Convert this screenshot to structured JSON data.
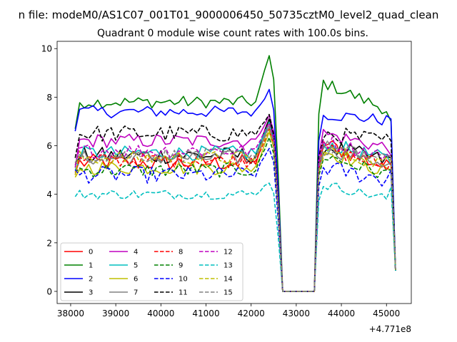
{
  "chart_data": {
    "type": "line",
    "suptitle": "n file: modeM0/AS1C07_001T01_9000006450_50735cztM0_level2_quad_clean",
    "title": "Quadrant 0 module wise count rates with 100.0s bins.",
    "xlabel": "",
    "ylabel": "",
    "x_offset_label": "+4.771e8",
    "xlim": [
      37700,
      45550
    ],
    "ylim": [
      -0.5,
      10.3
    ],
    "xticks": [
      38000,
      39000,
      40000,
      41000,
      42000,
      43000,
      44000,
      45000
    ],
    "yticks": [
      0,
      2,
      4,
      6,
      8,
      10
    ],
    "grid": false,
    "legend": {
      "placement": "lower-left",
      "columns": 4
    },
    "x_start": 38100,
    "x_step": 100,
    "n_points": 72,
    "gap_x": [
      42700,
      43400
    ],
    "series": [
      {
        "name": "0",
        "color": "#ff0000",
        "dash": "solid",
        "first": 4.9,
        "base": 5.3,
        "noise": 0.35,
        "peak": 6.9,
        "after": 6.1,
        "end": 5.2
      },
      {
        "name": "1",
        "color": "#008000",
        "dash": "solid",
        "first": 6.7,
        "base": 7.8,
        "noise": 0.25,
        "peak": 9.7,
        "after": 8.6,
        "end": 7.0
      },
      {
        "name": "2",
        "color": "#0000ff",
        "dash": "solid",
        "first": 6.6,
        "base": 7.4,
        "noise": 0.25,
        "peak": 8.3,
        "after": 7.3,
        "end": 7.1
      },
      {
        "name": "3",
        "color": "#000000",
        "dash": "solid",
        "first": 5.3,
        "base": 5.6,
        "noise": 0.35,
        "peak": 7.0,
        "after": 6.0,
        "end": 5.5
      },
      {
        "name": "4",
        "color": "#bf00bf",
        "dash": "solid",
        "first": 5.1,
        "base": 6.2,
        "noise": 0.3,
        "peak": 7.3,
        "after": 6.5,
        "end": 5.6
      },
      {
        "name": "5",
        "color": "#00bfbf",
        "dash": "solid",
        "first": 5.0,
        "base": 5.7,
        "noise": 0.3,
        "peak": 6.9,
        "after": 6.1,
        "end": 5.2
      },
      {
        "name": "6",
        "color": "#bfbf00",
        "dash": "solid",
        "first": 4.7,
        "base": 5.1,
        "noise": 0.3,
        "peak": 6.6,
        "after": 5.8,
        "end": 5.0
      },
      {
        "name": "7",
        "color": "#808080",
        "dash": "solid",
        "first": 5.2,
        "base": 5.5,
        "noise": 0.3,
        "peak": 6.8,
        "after": 5.9,
        "end": 5.3
      },
      {
        "name": "8",
        "color": "#ff0000",
        "dash": "dashed",
        "first": 4.8,
        "base": 5.4,
        "noise": 0.3,
        "peak": 6.7,
        "after": 5.9,
        "end": 5.3
      },
      {
        "name": "9",
        "color": "#008000",
        "dash": "dashed",
        "first": 4.9,
        "base": 5.0,
        "noise": 0.3,
        "peak": 6.3,
        "after": 5.6,
        "end": 5.0
      },
      {
        "name": "10",
        "color": "#0000ff",
        "dash": "dashed",
        "first": 5.0,
        "base": 4.8,
        "noise": 0.35,
        "peak": 5.9,
        "after": 5.1,
        "end": 5.0
      },
      {
        "name": "11",
        "color": "#000000",
        "dash": "dashed",
        "first": 5.5,
        "base": 6.5,
        "noise": 0.35,
        "peak": 7.2,
        "after": 6.5,
        "end": 6.2
      },
      {
        "name": "12",
        "color": "#bf00bf",
        "dash": "dashed",
        "first": 5.2,
        "base": 5.8,
        "noise": 0.3,
        "peak": 7.0,
        "after": 6.2,
        "end": 5.5
      },
      {
        "name": "13",
        "color": "#00bfbf",
        "dash": "dashed",
        "first": 3.9,
        "base": 4.0,
        "noise": 0.2,
        "peak": 4.5,
        "after": 4.4,
        "end": 4.3
      },
      {
        "name": "14",
        "color": "#bfbf00",
        "dash": "dashed",
        "first": 4.8,
        "base": 5.5,
        "noise": 0.3,
        "peak": 6.6,
        "after": 5.8,
        "end": 5.4
      },
      {
        "name": "15",
        "color": "#808080",
        "dash": "dashed",
        "first": 5.3,
        "base": 5.6,
        "noise": 0.3,
        "peak": 6.8,
        "after": 6.0,
        "end": 5.6
      }
    ]
  }
}
